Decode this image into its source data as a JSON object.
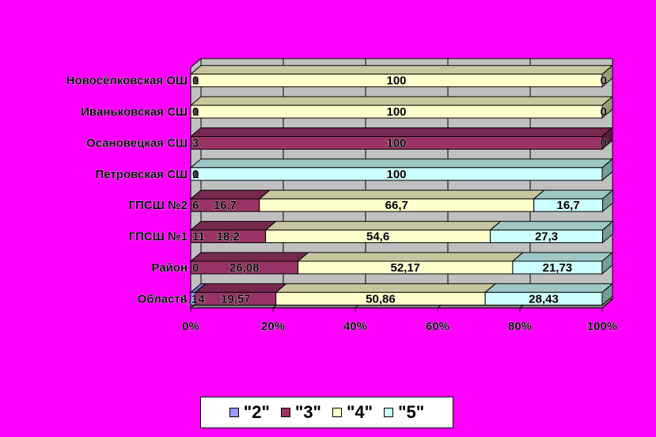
{
  "chart_data": {
    "type": "bar",
    "orientation": "horizontal",
    "stacked": "percent",
    "categories": [
      "Новосёлковская ОШ",
      "Иваньковская СШ",
      "Осановецкая СШ",
      "Петровская СШ",
      "ГПСШ №2",
      "ГПСШ №1",
      "Район",
      "Область"
    ],
    "series": [
      {
        "name": "\"2\"",
        "color": "#9999ff",
        "values": [
          0,
          0,
          0,
          0,
          0,
          0,
          0,
          1.14
        ]
      },
      {
        "name": "\"3\"",
        "color": "#993366",
        "values": [
          0,
          0,
          100,
          0,
          16.7,
          18.2,
          26.08,
          19.57
        ]
      },
      {
        "name": "\"4\"",
        "color": "#ffffcc",
        "values": [
          100,
          100,
          0,
          0,
          66.7,
          54.6,
          52.17,
          50.86
        ]
      },
      {
        "name": "\"5\"",
        "color": "#ccffff",
        "values": [
          0,
          0,
          0,
          100,
          16.7,
          27.3,
          21.73,
          28.43
        ]
      }
    ],
    "data_labels": [
      [
        "1",
        "0",
        "100",
        "0"
      ],
      [
        "1",
        "0",
        "100",
        "0"
      ],
      [
        "3",
        "100",
        "0",
        ""
      ],
      [
        "1",
        "0",
        "",
        "100"
      ],
      [
        "6",
        "16,7",
        "66,7",
        "16,7"
      ],
      [
        "11",
        "18,2",
        "54,6",
        "27,3"
      ],
      [
        "0",
        "26,08",
        "52,17",
        "21,73"
      ],
      [
        "1,14",
        "19,57",
        "50,86",
        "28,43"
      ]
    ],
    "x_ticks": [
      "0%",
      "20%",
      "40%",
      "60%",
      "80%",
      "100%"
    ],
    "xlim": [
      0,
      100
    ],
    "grid": true,
    "legend_position": "bottom"
  }
}
